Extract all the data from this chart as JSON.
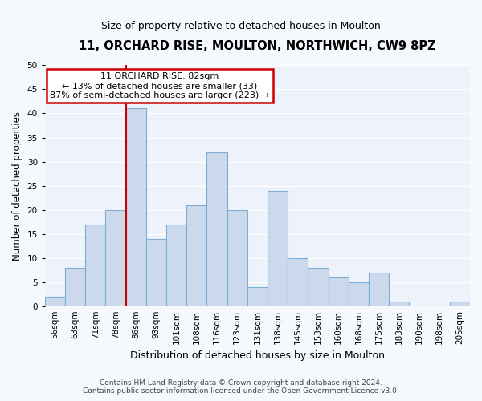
{
  "title": "11, ORCHARD RISE, MOULTON, NORTHWICH, CW9 8PZ",
  "subtitle": "Size of property relative to detached houses in Moulton",
  "xlabel": "Distribution of detached houses by size in Moulton",
  "ylabel": "Number of detached properties",
  "categories": [
    "56sqm",
    "63sqm",
    "71sqm",
    "78sqm",
    "86sqm",
    "93sqm",
    "101sqm",
    "108sqm",
    "116sqm",
    "123sqm",
    "131sqm",
    "138sqm",
    "145sqm",
    "153sqm",
    "160sqm",
    "168sqm",
    "175sqm",
    "183sqm",
    "190sqm",
    "198sqm",
    "205sqm"
  ],
  "values": [
    2,
    8,
    17,
    20,
    41,
    14,
    17,
    21,
    32,
    20,
    4,
    24,
    10,
    8,
    6,
    5,
    7,
    1,
    0,
    0,
    1
  ],
  "bar_color": "#ccd9ec",
  "bar_edge_color": "#7aaed6",
  "ylim": [
    0,
    50
  ],
  "yticks": [
    0,
    5,
    10,
    15,
    20,
    25,
    30,
    35,
    40,
    45,
    50
  ],
  "annotation_title": "11 ORCHARD RISE: 82sqm",
  "annotation_line1": "← 13% of detached houses are smaller (33)",
  "annotation_line2": "87% of semi-detached houses are larger (223) →",
  "annotation_box_facecolor": "#ffffff",
  "annotation_box_edgecolor": "#cc0000",
  "vline_x": 3.5,
  "vline_color": "#cc0000",
  "footer1": "Contains HM Land Registry data © Crown copyright and database right 2024.",
  "footer2": "Contains public sector information licensed under the Open Government Licence v3.0.",
  "fig_facecolor": "#f5f8fd",
  "axes_facecolor": "#eef3fb",
  "grid_color": "#ffffff",
  "title_fontsize": 10.5,
  "subtitle_fontsize": 9,
  "ylabel_fontsize": 8.5,
  "xlabel_fontsize": 9,
  "tick_fontsize": 7.5,
  "footer_fontsize": 6.5,
  "annot_fontsize": 8
}
